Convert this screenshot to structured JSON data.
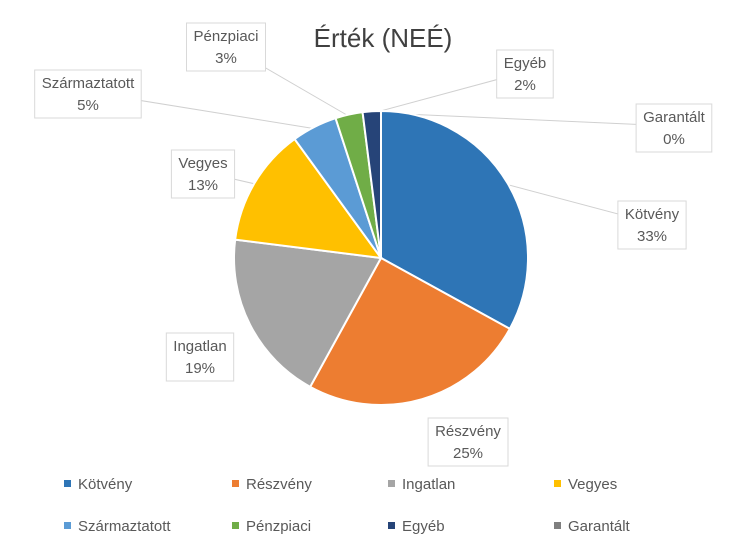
{
  "chart_data": {
    "type": "pie",
    "title": "Érték (NEÉ)",
    "categories": [
      "Kötvény",
      "Részvény",
      "Ingatlan",
      "Vegyes",
      "Származtatott",
      "Pénzpiaci",
      "Egyéb",
      "Garantált"
    ],
    "values": [
      33,
      25,
      19,
      13,
      5,
      3,
      2,
      0
    ],
    "value_labels": [
      "33%",
      "25%",
      "19%",
      "13%",
      "5%",
      "3%",
      "2%",
      "0%"
    ],
    "colors": [
      "#2E75B6",
      "#ED7D31",
      "#A5A5A5",
      "#FFC000",
      "#5B9BD5",
      "#70AD47",
      "#264478",
      "#7F7F7F"
    ],
    "legend_position": "bottom"
  }
}
